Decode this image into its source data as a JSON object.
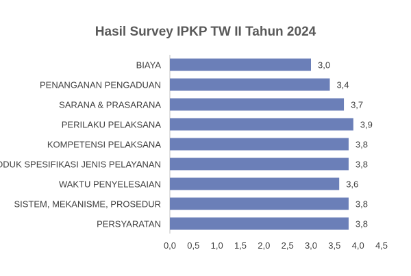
{
  "chart_data": {
    "type": "bar",
    "orientation": "horizontal",
    "title": "Hasil Survey IPKP TW II Tahun 2024",
    "categories": [
      "BIAYA",
      "PENANGANAN PENGADUAN",
      "SARANA & PRASARANA",
      "PERILAKU PELAKSANA",
      "KOMPETENSI PELAKSANA",
      "PRODUK SPESIFIKASI JENIS PELAYANAN",
      "WAKTU PENYELESAIAN",
      "SISTEM, MEKANISME, PROSEDUR",
      "PERSYARATAN"
    ],
    "values": [
      3.0,
      3.4,
      3.7,
      3.9,
      3.8,
      3.8,
      3.6,
      3.8,
      3.8
    ],
    "value_labels": [
      "3,0",
      "3,4",
      "3,7",
      "3,9",
      "3,8",
      "3,8",
      "3,6",
      "3,8",
      "3,8"
    ],
    "xticks": [
      "0,0",
      "0,5",
      "1,0",
      "1,5",
      "2,0",
      "2,5",
      "3,0",
      "3,5",
      "4,0",
      "4,5"
    ],
    "xlim": [
      0,
      4.5
    ],
    "xlabel": "",
    "ylabel": "",
    "grid": false,
    "bar_color": "#6B7FB8"
  }
}
